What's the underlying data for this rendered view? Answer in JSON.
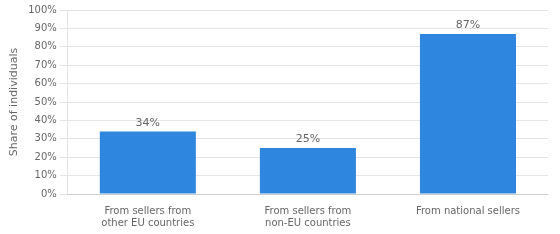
{
  "chart_data": {
    "type": "bar",
    "categories": [
      "From sellers from other EU countries",
      "From sellers from non-EU countries",
      "From national sellers"
    ],
    "values": [
      34,
      25,
      87
    ],
    "value_labels": [
      "34%",
      "25%",
      "87%"
    ],
    "data_labels": true,
    "color": "#2e86de",
    "ylabel": "Share of individuals",
    "ylim": [
      0,
      100
    ],
    "yticks": [
      {
        "value": 0,
        "label": "0%"
      },
      {
        "value": 10,
        "label": "10%"
      },
      {
        "value": 20,
        "label": "20%"
      },
      {
        "value": 30,
        "label": "30%"
      },
      {
        "value": 40,
        "label": "40%"
      },
      {
        "value": 50,
        "label": "50%"
      },
      {
        "value": 60,
        "label": "60%"
      },
      {
        "value": 70,
        "label": "70%"
      },
      {
        "value": 80,
        "label": "80%"
      },
      {
        "value": 90,
        "label": "90%"
      },
      {
        "value": 100,
        "label": "100%"
      }
    ],
    "grid": true
  }
}
